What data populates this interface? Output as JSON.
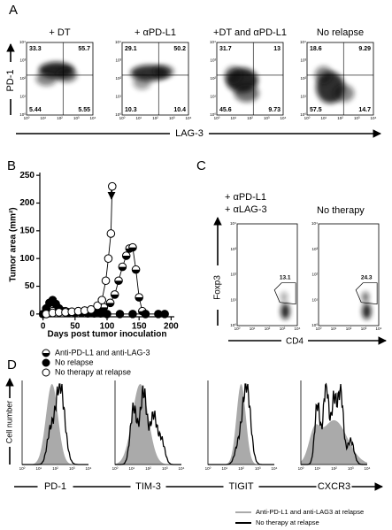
{
  "panels": {
    "A": {
      "label": "A",
      "y_axis": "PD-1",
      "x_axis": "LAG-3",
      "axis_ticks": [
        "10⁰",
        "10¹",
        "10²",
        "10³",
        "10⁴"
      ],
      "plots": [
        {
          "title": "+ DT",
          "quadrants": [
            33.3,
            55.7,
            5.44,
            5.55
          ]
        },
        {
          "title": "+ αPD-L1",
          "quadrants": [
            29.1,
            50.2,
            10.3,
            10.4
          ]
        },
        {
          "title": "+DT and αPD-L1",
          "quadrants": [
            31.7,
            13,
            45.6,
            9.73
          ]
        },
        {
          "title": "No relapse",
          "quadrants": [
            18.6,
            9.29,
            57.5,
            14.7
          ]
        }
      ]
    },
    "B": {
      "label": "B"
    },
    "C": {
      "label": "C",
      "y_axis": "Foxp3",
      "x_axis": "CD4",
      "axis_ticks": [
        "10⁰",
        "10¹",
        "10²",
        "10³",
        "10⁴"
      ],
      "plots": [
        {
          "title": [
            "+ αPD-L1",
            "+ αLAG-3"
          ],
          "gate": 13.1
        },
        {
          "title": [
            "No therapy"
          ],
          "gate": 24.3
        }
      ]
    },
    "D": {
      "label": "D",
      "y_axis": "Cell number",
      "axis_ticks": [
        "10⁰",
        "10¹",
        "10²",
        "10³",
        "10⁴"
      ],
      "plots": [
        "PD-1",
        "TIM-3",
        "TIGIT",
        "CXCR3"
      ],
      "legend": [
        {
          "name": "Anti-PD-L1 and anti-LAG3 at relapse",
          "color": "#aaaaaa"
        },
        {
          "name": "No therapy at relapse",
          "color": "#000000"
        }
      ]
    }
  },
  "chart_data": {
    "type": "line",
    "xlabel": "Days post tumor inoculation",
    "ylabel": "Tumor area (mm²)",
    "xlim": [
      -5,
      205
    ],
    "ylim": [
      -5,
      255
    ],
    "xticks": [
      0,
      50,
      100,
      150,
      200
    ],
    "yticks": [
      0,
      50,
      100,
      150,
      200,
      250
    ],
    "series": [
      {
        "name": "Anti-PD-L1 and anti-LAG-3",
        "color": "#000000",
        "marker": "half",
        "x": [
          5,
          15,
          25,
          35,
          45,
          55,
          65,
          75,
          85,
          95,
          105,
          112,
          118,
          124,
          130,
          135,
          140,
          145,
          150,
          155,
          160
        ],
        "values": [
          0,
          5,
          6,
          5,
          4,
          5,
          6,
          8,
          10,
          12,
          20,
          35,
          60,
          85,
          105,
          118,
          120,
          80,
          30,
          5,
          0
        ]
      },
      {
        "name": "No relapse",
        "color": "#000000",
        "marker": "filled",
        "x": [
          0,
          5,
          10,
          15,
          20,
          25,
          30,
          40,
          50,
          60,
          70,
          80,
          90,
          100,
          120,
          140,
          160,
          180,
          190
        ],
        "values": [
          0,
          10,
          20,
          25,
          18,
          10,
          5,
          3,
          2,
          2,
          1,
          1,
          1,
          0,
          0,
          0,
          0,
          0,
          0
        ]
      },
      {
        "name": "No therapy at relapse",
        "color": "#000000",
        "marker": "open",
        "x": [
          5,
          15,
          25,
          35,
          45,
          55,
          65,
          75,
          85,
          92,
          98,
          102,
          106,
          108
        ],
        "values": [
          0,
          2,
          3,
          3,
          4,
          5,
          6,
          8,
          15,
          25,
          60,
          100,
          145,
          230
        ]
      }
    ]
  }
}
